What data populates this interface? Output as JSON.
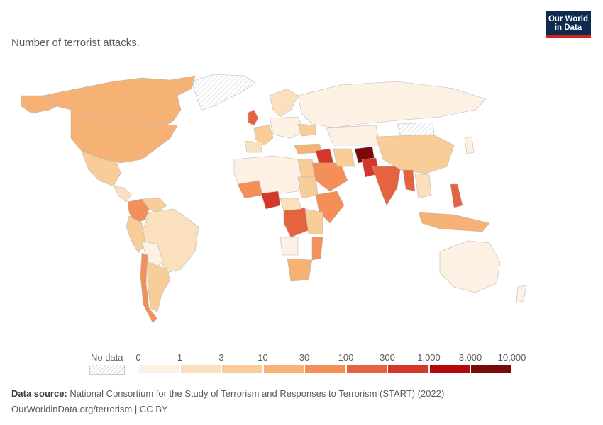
{
  "header": {
    "subtitle": "Number of terrorist attacks.",
    "logo_line1": "Our World",
    "logo_line2": "in Data"
  },
  "legend": {
    "no_data_label": "No data",
    "ticks": [
      "0",
      "1",
      "3",
      "10",
      "30",
      "100",
      "300",
      "1,000",
      "3,000",
      "10,000"
    ],
    "colors": [
      "#fdf1e3",
      "#fbe0bd",
      "#f9cd98",
      "#f6b175",
      "#f38f57",
      "#e6633f",
      "#d5382a",
      "#b4080e",
      "#7a0a0a"
    ]
  },
  "footer": {
    "source_label": "Data source:",
    "source_text": "National Consortium for the Study of Terrorism and Responses to Terrorism (START) (2022)",
    "url": "OurWorldinData.org/terrorism | CC BY"
  }
}
